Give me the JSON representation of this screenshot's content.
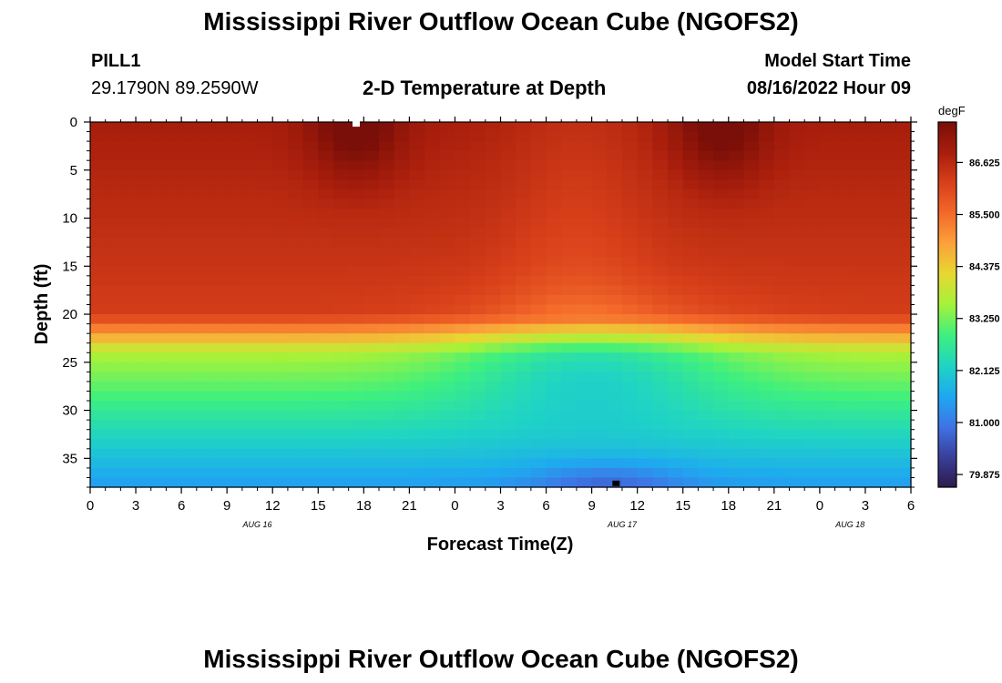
{
  "header": {
    "title": "Mississippi River Outflow Ocean Cube (NGOFS2)",
    "station": "PILL1",
    "coords": "29.1790N  89.2590W",
    "subtitle": "2-D Temperature at Depth",
    "model_start_label": "Model Start Time",
    "model_start_value": "08/16/2022 Hour 09"
  },
  "footer": {
    "title": "Mississippi River Outflow Ocean Cube (NGOFS2)"
  },
  "chart_data": {
    "type": "heatmap",
    "title": "2-D Temperature at Depth",
    "xlabel": "Forecast Time(Z)",
    "ylabel": "Depth (ft)",
    "x_tick_labels": [
      "0",
      "3",
      "6",
      "9",
      "12",
      "15",
      "18",
      "21",
      "0",
      "3",
      "6",
      "9",
      "12",
      "15",
      "18",
      "21",
      "0",
      "3",
      "6"
    ],
    "x_range_hours": [
      0,
      54
    ],
    "x_date_labels": [
      {
        "hour": 11,
        "label": "AUG 16"
      },
      {
        "hour": 35,
        "label": "AUG 17"
      },
      {
        "hour": 50,
        "label": "AUG 18"
      }
    ],
    "y_ticks": [
      0,
      5,
      10,
      15,
      20,
      25,
      30,
      35
    ],
    "y_range_ft": [
      0,
      38
    ],
    "y_reversed": true,
    "colorbar": {
      "unit": "degF",
      "ticks": [
        "86.625",
        "85.500",
        "84.375",
        "83.250",
        "82.125",
        "81.000",
        "79.875"
      ],
      "min": 79.6,
      "max": 87.5,
      "colors": [
        "#2d1a4a",
        "#3a3f9a",
        "#3f74e6",
        "#1ea9f0",
        "#1fd4c4",
        "#3ef07e",
        "#a4f23a",
        "#e6d832",
        "#fba23a",
        "#f4692a",
        "#d8401a",
        "#a81e0c",
        "#7a0e08"
      ]
    },
    "markers": [
      {
        "hour": 17.5,
        "depth_ft": 0.2,
        "color": "#ffffff"
      },
      {
        "hour": 34.6,
        "depth_ft": 37.6,
        "color": "#000000"
      }
    ]
  }
}
